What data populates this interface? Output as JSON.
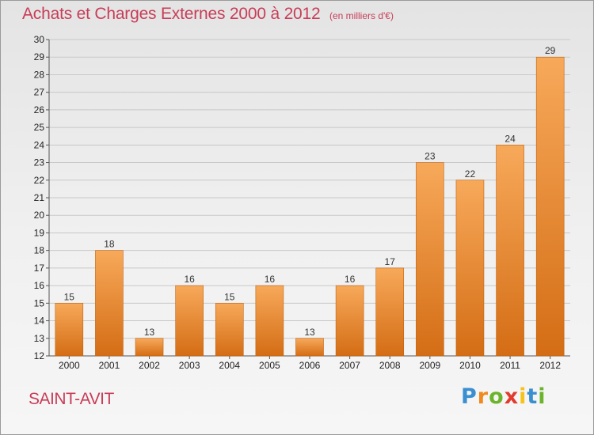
{
  "header": {
    "title": "Achats et Charges Externes 2000 à 2012",
    "subtitle": "(en milliers d'€)"
  },
  "footer": {
    "commune": "SAINT-AVIT",
    "logo": "Proxiti",
    "logo_colors": [
      "#3a8fd0",
      "#f08a1c",
      "#6cb42c",
      "#e23b2e",
      "#f5c31a",
      "#3a8fd0",
      "#6cb42c"
    ]
  },
  "colors": {
    "bar_top": "#f7a95a",
    "bar_bottom": "#d46d15",
    "bar_edge": "#c0630f",
    "grid": "#c8c8c8",
    "title": "#c83d57"
  },
  "chart_data": {
    "type": "bar",
    "categories": [
      "2000",
      "2001",
      "2002",
      "2003",
      "2004",
      "2005",
      "2006",
      "2007",
      "2008",
      "2009",
      "2010",
      "2011",
      "2012"
    ],
    "values": [
      15,
      18,
      13,
      16,
      15,
      16,
      13,
      16,
      17,
      23,
      22,
      24,
      29
    ],
    "ylim": [
      12,
      30
    ],
    "yticks": [
      12,
      13,
      14,
      15,
      16,
      17,
      18,
      19,
      20,
      21,
      22,
      23,
      24,
      25,
      26,
      27,
      28,
      29,
      30
    ],
    "grid": true,
    "data_labels": true
  }
}
